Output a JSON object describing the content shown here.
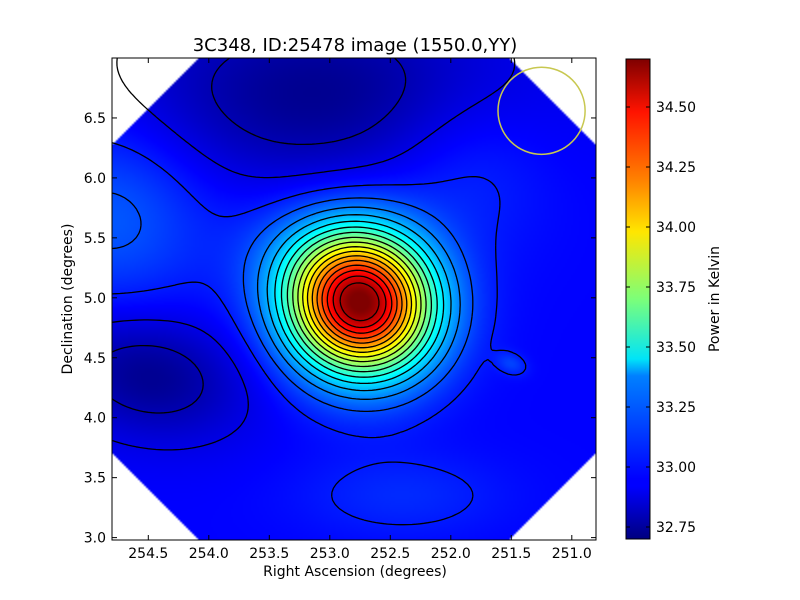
{
  "chart_data": {
    "type": "heatmap",
    "title": "3C348, ID:25478 image (1550.0,YY)",
    "xlabel": "Right Ascension (degrees)",
    "ylabel": "Declination (degrees)",
    "xlim": [
      254.8,
      250.8
    ],
    "ylim": [
      2.98,
      7.0
    ],
    "x_ticks": [
      "254.5",
      "254.0",
      "253.5",
      "253.0",
      "252.5",
      "252.0",
      "251.5",
      "251.0"
    ],
    "x_tick_values": [
      254.5,
      254.0,
      253.5,
      253.0,
      252.5,
      252.0,
      251.5,
      251.0
    ],
    "y_ticks": [
      "3.0",
      "3.5",
      "4.0",
      "4.5",
      "5.0",
      "5.5",
      "6.0",
      "6.5"
    ],
    "y_tick_values": [
      3.0,
      3.5,
      4.0,
      4.5,
      5.0,
      5.5,
      6.0,
      6.5
    ],
    "colorbar": {
      "label": "Power in Kelvin",
      "range": [
        32.7,
        34.7
      ],
      "ticks": [
        "32.75",
        "33.00",
        "33.25",
        "33.50",
        "33.75",
        "34.00",
        "34.25",
        "34.50"
      ],
      "tick_values": [
        32.75,
        33.0,
        33.25,
        33.5,
        33.75,
        34.0,
        34.25,
        34.5
      ],
      "colormap": "jet"
    },
    "peak_source": {
      "ra": 252.75,
      "dec": 4.95,
      "value": 34.65
    },
    "secondary_source": {
      "ra": 251.5,
      "dec": 4.45,
      "value": 33.1
    },
    "beam_circle": {
      "ra": 251.25,
      "dec": 6.56,
      "radius_deg": 0.36,
      "color": "#c8c850"
    },
    "contour_interval": 0.1
  }
}
